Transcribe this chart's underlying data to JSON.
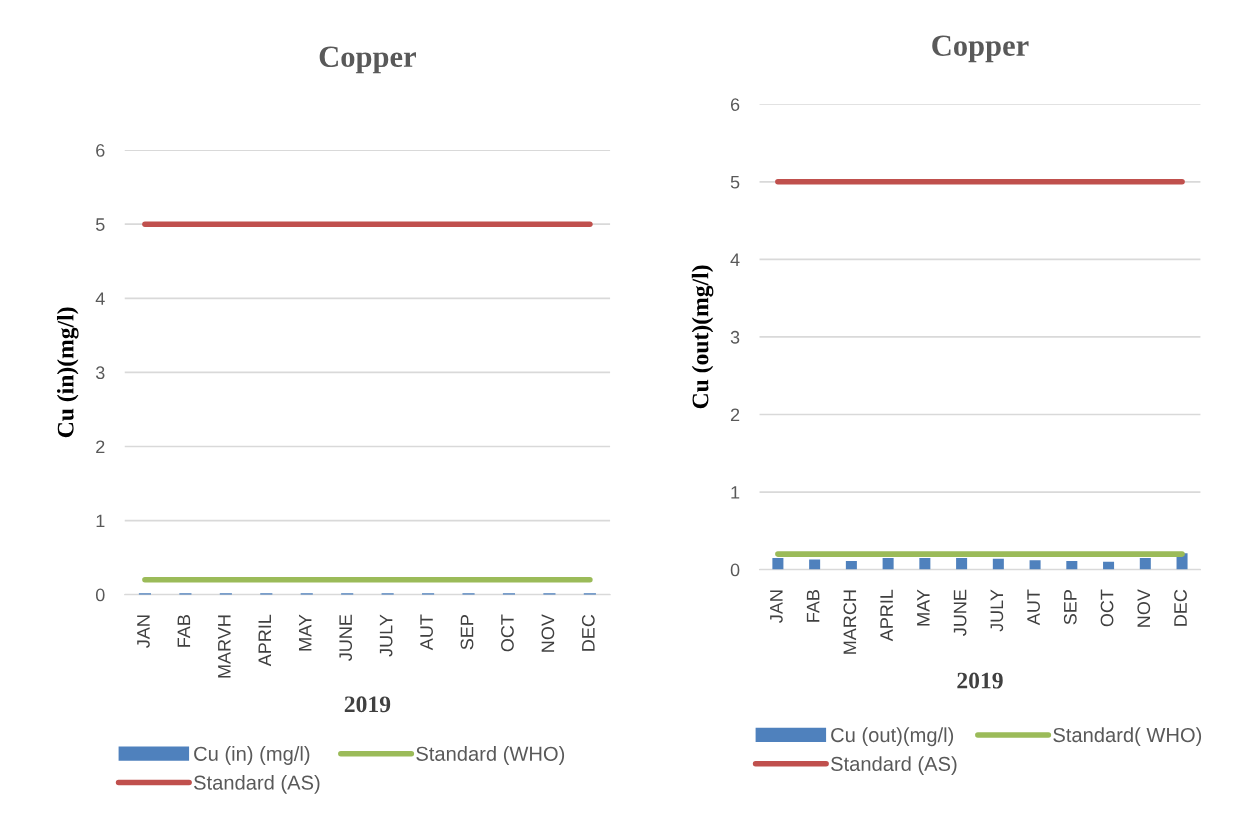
{
  "chart_data": [
    {
      "type": "bar",
      "title": "Copper",
      "xlabel": "2019",
      "ylabel": "Cu (in)(mg/l)",
      "categories": [
        "JAN",
        "FAB",
        "MARVH",
        "APRIL",
        "MAY",
        "JUNE",
        "JULY",
        "AUT",
        "SEP",
        "OCT",
        "NOV",
        "DEC"
      ],
      "ylim": [
        0,
        6
      ],
      "yticks": [
        0,
        1,
        2,
        3,
        4,
        5,
        6
      ],
      "grid": "y",
      "legend": "bottom",
      "series": [
        {
          "name": "Cu (in) (mg/l)",
          "color": "#4f81bd",
          "values": [
            0.02,
            0.02,
            0.02,
            0.02,
            0.02,
            0.02,
            0.02,
            0.02,
            0.02,
            0.02,
            0.02,
            0.02
          ]
        },
        {
          "name": "Standard (AS)",
          "type": "line",
          "color": "#c0504d",
          "values": [
            5,
            5,
            5,
            5,
            5,
            5,
            5,
            5,
            5,
            5,
            5,
            5
          ]
        },
        {
          "name": "Standard (WHO)",
          "type": "line",
          "color": "#9bbb59",
          "values": [
            0.2,
            0.2,
            0.2,
            0.2,
            0.2,
            0.2,
            0.2,
            0.2,
            0.2,
            0.2,
            0.2,
            0.2
          ]
        }
      ]
    },
    {
      "type": "bar",
      "title": "Copper",
      "xlabel": "2019",
      "ylabel": "Cu (out)(mg/l)",
      "categories": [
        "JAN",
        "FAB",
        "MARCH",
        "APRIL",
        "MAY",
        "JUNE",
        "JULY",
        "AUT",
        "SEP",
        "OCT",
        "NOV",
        "DEC"
      ],
      "ylim": [
        0,
        6
      ],
      "yticks": [
        0,
        1,
        2,
        3,
        4,
        5,
        6
      ],
      "grid": "y",
      "legend": "bottom",
      "series": [
        {
          "name": "Cu (out)(mg/l)",
          "color": "#4f81bd",
          "values": [
            0.15,
            0.13,
            0.11,
            0.15,
            0.15,
            0.15,
            0.14,
            0.12,
            0.11,
            0.1,
            0.15,
            0.21
          ]
        },
        {
          "name": "Standard (AS)",
          "type": "line",
          "color": "#c0504d",
          "values": [
            5,
            5,
            5,
            5,
            5,
            5,
            5,
            5,
            5,
            5,
            5,
            5
          ]
        },
        {
          "name": "Standard( WHO)",
          "type": "line",
          "color": "#9bbb59",
          "values": [
            0.2,
            0.2,
            0.2,
            0.2,
            0.2,
            0.2,
            0.2,
            0.2,
            0.2,
            0.2,
            0.2,
            0.2
          ]
        }
      ]
    }
  ]
}
